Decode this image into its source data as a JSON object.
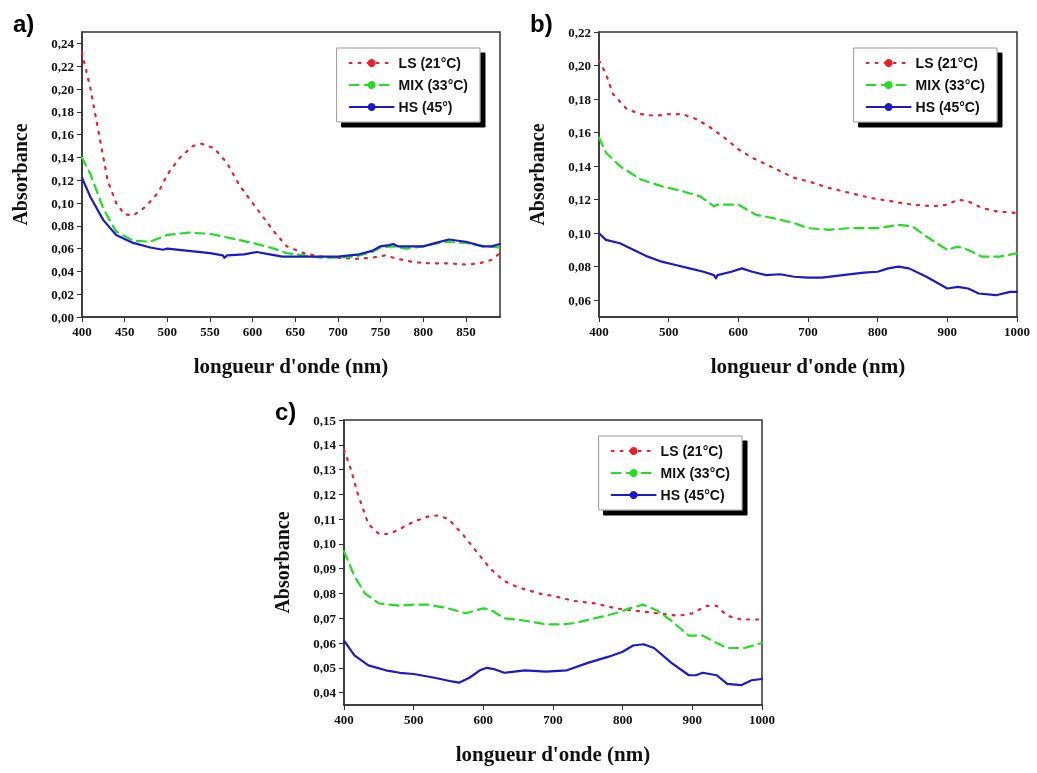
{
  "chart_data": [
    {
      "type": "line",
      "title": "a)",
      "xlabel": "longueur d'onde (nm)",
      "ylabel": "Absorbance",
      "xlim": [
        400,
        890
      ],
      "ylim": [
        0,
        0.25
      ],
      "xticks": [
        400,
        450,
        500,
        550,
        600,
        650,
        700,
        750,
        800,
        850
      ],
      "yticks": [
        {
          "value": 0,
          "label": "0,00"
        },
        {
          "value": 0.02,
          "label": "0,02"
        },
        {
          "value": 0.04,
          "label": "0,04"
        },
        {
          "value": 0.06,
          "label": "0,06"
        },
        {
          "value": 0.08,
          "label": "0,08"
        },
        {
          "value": 0.1,
          "label": "0,10"
        },
        {
          "value": 0.12,
          "label": "0,12"
        },
        {
          "value": 0.14,
          "label": "0,14"
        },
        {
          "value": 0.16,
          "label": "0,16"
        },
        {
          "value": 0.18,
          "label": "0,18"
        },
        {
          "value": 0.2,
          "label": "0,20"
        },
        {
          "value": 0.22,
          "label": "0,22"
        },
        {
          "value": 0.24,
          "label": "0,24"
        }
      ],
      "legend": "top right",
      "marker": "none",
      "series": [
        {
          "name": "LS (21°C)",
          "color": "#e8202a",
          "line_style": "dotted",
          "x": [
            400,
            410,
            420,
            430,
            440,
            450,
            460,
            475,
            490,
            500,
            515,
            530,
            540,
            555,
            570,
            585,
            600,
            610,
            625,
            640,
            660,
            680,
            700,
            720,
            740,
            755,
            770,
            790,
            810,
            830,
            850,
            865,
            880,
            890
          ],
          "values": [
            0.232,
            0.2,
            0.16,
            0.12,
            0.1,
            0.09,
            0.089,
            0.097,
            0.11,
            0.125,
            0.14,
            0.15,
            0.152,
            0.148,
            0.135,
            0.115,
            0.1,
            0.09,
            0.075,
            0.062,
            0.056,
            0.053,
            0.052,
            0.051,
            0.052,
            0.054,
            0.051,
            0.048,
            0.047,
            0.047,
            0.046,
            0.047,
            0.05,
            0.056
          ]
        },
        {
          "name": "MIX (33°C)",
          "color": "#22dd22",
          "line_style": "dashed",
          "x": [
            400,
            410,
            425,
            440,
            460,
            480,
            500,
            525,
            550,
            575,
            600,
            625,
            640,
            660,
            680,
            700,
            720,
            740,
            750,
            765,
            780,
            800,
            825,
            850,
            870,
            890
          ],
          "values": [
            0.14,
            0.125,
            0.095,
            0.075,
            0.067,
            0.066,
            0.072,
            0.074,
            0.073,
            0.069,
            0.065,
            0.06,
            0.056,
            0.054,
            0.052,
            0.052,
            0.053,
            0.057,
            0.061,
            0.062,
            0.06,
            0.062,
            0.066,
            0.065,
            0.062,
            0.061
          ]
        },
        {
          "name": "HS (45°)",
          "color": "#1a1acc",
          "line_style": "solid",
          "x": [
            400,
            410,
            425,
            440,
            460,
            480,
            495,
            500,
            525,
            550,
            565,
            567,
            570,
            590,
            605,
            620,
            635,
            660,
            700,
            725,
            740,
            750,
            760,
            765,
            770,
            800,
            815,
            830,
            850,
            870,
            880,
            890
          ],
          "values": [
            0.122,
            0.105,
            0.085,
            0.072,
            0.065,
            0.061,
            0.059,
            0.06,
            0.058,
            0.056,
            0.054,
            0.052,
            0.054,
            0.055,
            0.057,
            0.055,
            0.053,
            0.053,
            0.053,
            0.055,
            0.058,
            0.062,
            0.063,
            0.064,
            0.062,
            0.062,
            0.065,
            0.068,
            0.066,
            0.062,
            0.062,
            0.064
          ]
        }
      ]
    },
    {
      "type": "line",
      "title": "b)",
      "xlabel": "longueur d'onde (nm)",
      "ylabel": "Absorbance",
      "xlim": [
        400,
        1000
      ],
      "ylim": [
        0.05,
        0.22
      ],
      "xticks": [
        400,
        500,
        600,
        700,
        800,
        900,
        1000
      ],
      "yticks": [
        {
          "value": 0.06,
          "label": "0,06"
        },
        {
          "value": 0.08,
          "label": "0,08"
        },
        {
          "value": 0.1,
          "label": "0,10"
        },
        {
          "value": 0.12,
          "label": "0,12"
        },
        {
          "value": 0.14,
          "label": "0,14"
        },
        {
          "value": 0.16,
          "label": "0,16"
        },
        {
          "value": 0.18,
          "label": "0,18"
        },
        {
          "value": 0.2,
          "label": "0,20"
        },
        {
          "value": 0.22,
          "label": "0,22"
        }
      ],
      "legend": "top right",
      "marker": "none",
      "series": [
        {
          "name": "LS (21°C)",
          "color": "#e8202a",
          "line_style": "dotted",
          "x": [
            400,
            410,
            420,
            440,
            460,
            480,
            500,
            520,
            540,
            560,
            580,
            600,
            620,
            650,
            680,
            700,
            730,
            760,
            790,
            820,
            850,
            880,
            900,
            915,
            930,
            950,
            970,
            1000
          ],
          "values": [
            0.203,
            0.195,
            0.183,
            0.174,
            0.171,
            0.17,
            0.171,
            0.171,
            0.168,
            0.163,
            0.157,
            0.15,
            0.145,
            0.139,
            0.133,
            0.131,
            0.127,
            0.124,
            0.121,
            0.119,
            0.117,
            0.116,
            0.117,
            0.12,
            0.119,
            0.115,
            0.113,
            0.112
          ]
        },
        {
          "name": "MIX (33°C)",
          "color": "#22dd22",
          "line_style": "dashed",
          "x": [
            400,
            410,
            430,
            460,
            490,
            520,
            545,
            565,
            570,
            600,
            625,
            650,
            680,
            700,
            730,
            760,
            800,
            830,
            850,
            870,
            900,
            915,
            930,
            950,
            975,
            1000
          ],
          "values": [
            0.157,
            0.148,
            0.14,
            0.132,
            0.128,
            0.125,
            0.122,
            0.116,
            0.117,
            0.117,
            0.111,
            0.109,
            0.106,
            0.103,
            0.102,
            0.103,
            0.103,
            0.105,
            0.104,
            0.098,
            0.09,
            0.092,
            0.09,
            0.086,
            0.086,
            0.088
          ]
        },
        {
          "name": "HS (45°C)",
          "color": "#1a1acc",
          "line_style": "solid",
          "x": [
            400,
            410,
            430,
            450,
            470,
            490,
            510,
            530,
            550,
            565,
            568,
            570,
            590,
            605,
            620,
            640,
            660,
            680,
            700,
            720,
            750,
            780,
            800,
            815,
            830,
            845,
            870,
            900,
            915,
            930,
            945,
            970,
            990,
            1000
          ],
          "values": [
            0.1,
            0.096,
            0.094,
            0.09,
            0.086,
            0.083,
            0.081,
            0.079,
            0.077,
            0.075,
            0.073,
            0.075,
            0.077,
            0.079,
            0.077,
            0.075,
            0.0755,
            0.074,
            0.0735,
            0.0735,
            0.075,
            0.0765,
            0.077,
            0.079,
            0.08,
            0.079,
            0.074,
            0.067,
            0.068,
            0.067,
            0.064,
            0.063,
            0.065,
            0.065
          ]
        }
      ]
    },
    {
      "type": "line",
      "title": "c)",
      "xlabel": "longueur d'onde (nm)",
      "ylabel": "Absorbance",
      "xlim": [
        400,
        1000
      ],
      "ylim": [
        0.035,
        0.15
      ],
      "xticks": [
        400,
        500,
        600,
        700,
        800,
        900,
        1000
      ],
      "yticks": [
        {
          "value": 0.04,
          "label": "0,04"
        },
        {
          "value": 0.05,
          "label": "0,05"
        },
        {
          "value": 0.06,
          "label": "0,06"
        },
        {
          "value": 0.07,
          "label": "0,07"
        },
        {
          "value": 0.08,
          "label": "0,08"
        },
        {
          "value": 0.09,
          "label": "0,09"
        },
        {
          "value": 0.1,
          "label": "0,10"
        },
        {
          "value": 0.11,
          "label": "0,11"
        },
        {
          "value": 0.12,
          "label": "0,12"
        },
        {
          "value": 0.13,
          "label": "0,13"
        },
        {
          "value": 0.14,
          "label": "0,14"
        },
        {
          "value": 0.15,
          "label": "0,15"
        }
      ],
      "legend": "top right",
      "marker": "none",
      "series": [
        {
          "name": "LS (21°C)",
          "color": "#e8202a",
          "line_style": "dotted",
          "x": [
            400,
            410,
            420,
            435,
            450,
            465,
            480,
            500,
            520,
            535,
            550,
            570,
            590,
            610,
            630,
            650,
            680,
            700,
            730,
            760,
            790,
            820,
            850,
            880,
            900,
            920,
            935,
            950,
            970,
            1000
          ],
          "values": [
            0.138,
            0.13,
            0.12,
            0.108,
            0.104,
            0.104,
            0.106,
            0.109,
            0.111,
            0.1115,
            0.11,
            0.104,
            0.097,
            0.09,
            0.085,
            0.0825,
            0.08,
            0.079,
            0.077,
            0.076,
            0.074,
            0.073,
            0.072,
            0.071,
            0.072,
            0.075,
            0.075,
            0.071,
            0.0695,
            0.0695
          ]
        },
        {
          "name": "MIX (33°C)",
          "color": "#22dd22",
          "line_style": "dashed",
          "x": [
            400,
            415,
            430,
            450,
            480,
            500,
            520,
            550,
            575,
            600,
            610,
            630,
            660,
            690,
            710,
            730,
            760,
            790,
            810,
            830,
            850,
            870,
            895,
            915,
            935,
            950,
            975,
            1000
          ],
          "values": [
            0.097,
            0.087,
            0.08,
            0.076,
            0.075,
            0.0755,
            0.0755,
            0.074,
            0.072,
            0.074,
            0.0735,
            0.07,
            0.069,
            0.0675,
            0.0675,
            0.068,
            0.07,
            0.072,
            0.074,
            0.0755,
            0.073,
            0.069,
            0.063,
            0.063,
            0.06,
            0.058,
            0.058,
            0.06
          ]
        },
        {
          "name": "HS (45°C)",
          "color": "#1a1acc",
          "line_style": "solid",
          "x": [
            400,
            415,
            435,
            460,
            480,
            500,
            530,
            555,
            565,
            580,
            595,
            605,
            615,
            630,
            660,
            690,
            720,
            750,
            780,
            800,
            815,
            830,
            845,
            870,
            895,
            905,
            915,
            935,
            950,
            970,
            985,
            1000
          ],
          "values": [
            0.061,
            0.055,
            0.051,
            0.049,
            0.048,
            0.0475,
            0.046,
            0.0445,
            0.044,
            0.046,
            0.049,
            0.05,
            0.0495,
            0.048,
            0.049,
            0.0485,
            0.049,
            0.052,
            0.0545,
            0.0565,
            0.059,
            0.0595,
            0.058,
            0.052,
            0.047,
            0.047,
            0.048,
            0.047,
            0.0435,
            0.043,
            0.045,
            0.0455
          ]
        }
      ]
    }
  ]
}
